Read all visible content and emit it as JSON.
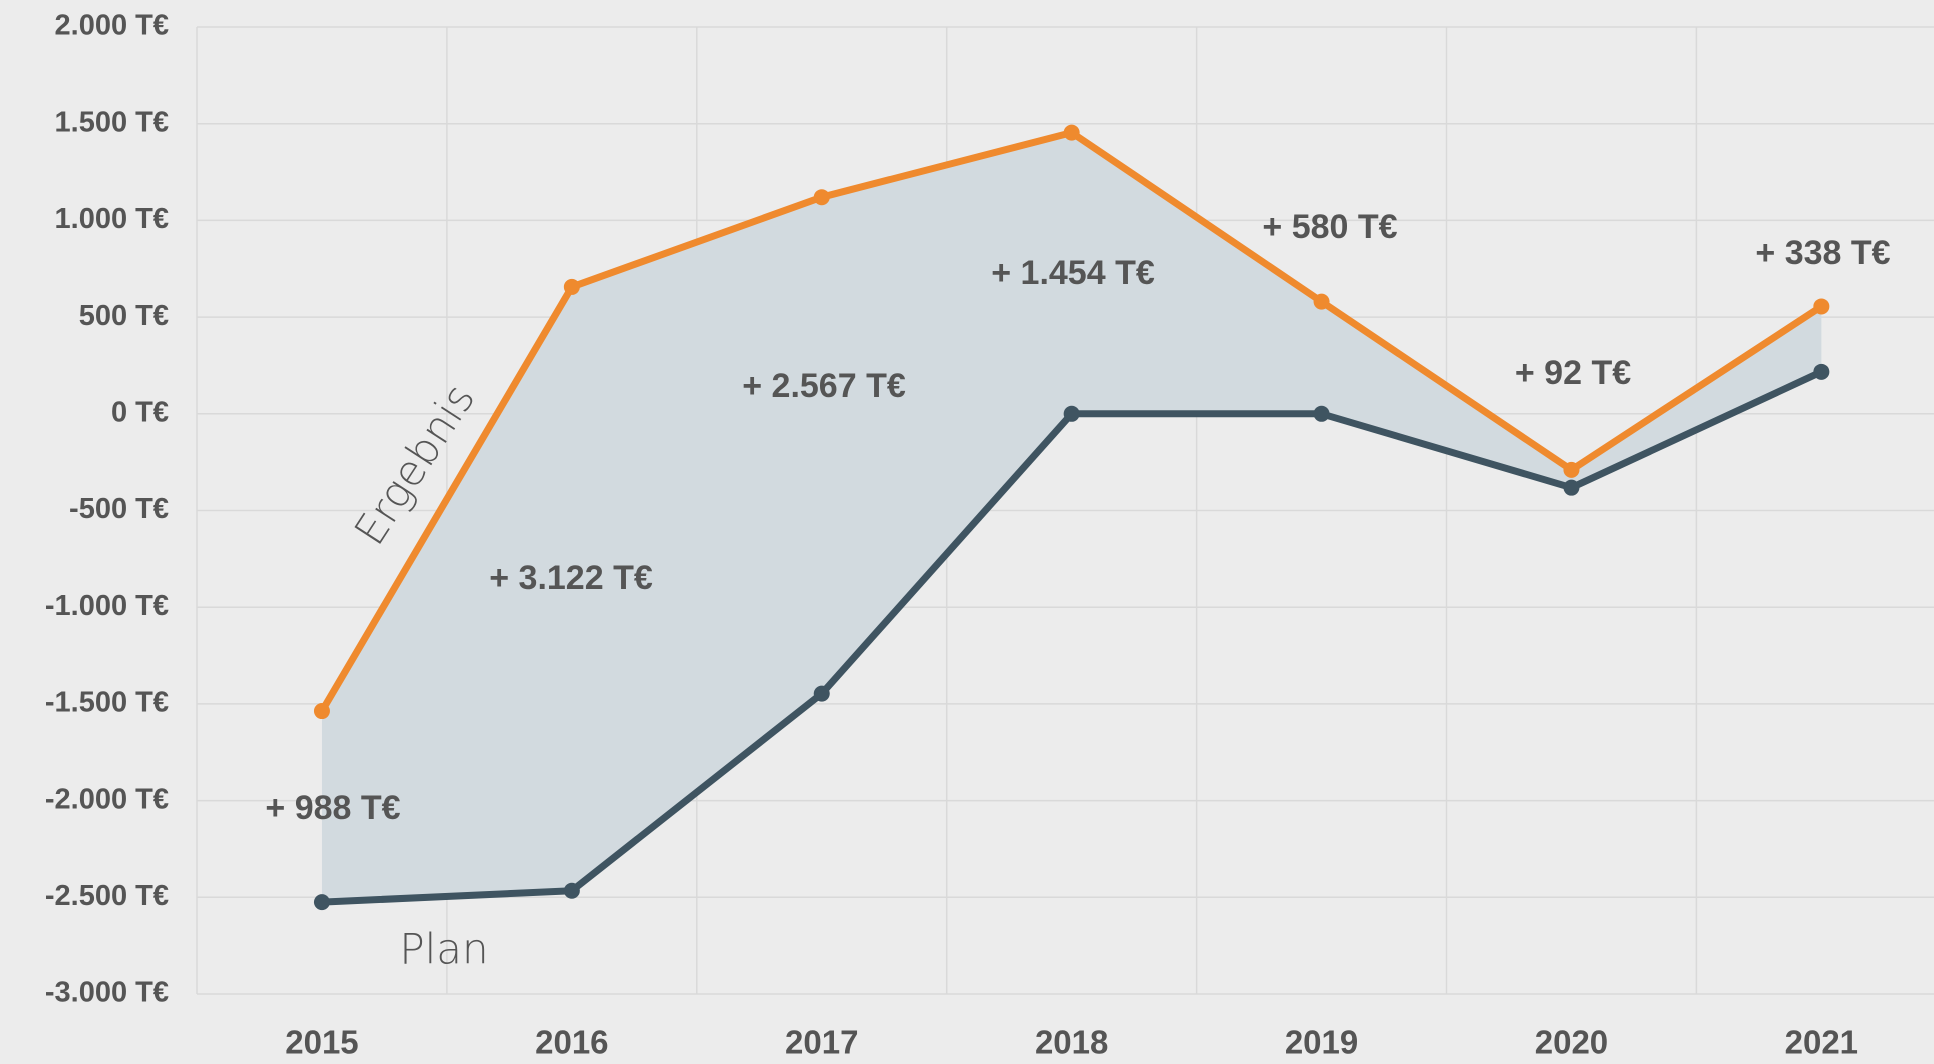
{
  "chart_data": {
    "type": "line",
    "categories": [
      "2015",
      "2016",
      "2017",
      "2018",
      "2019",
      "2020",
      "2021"
    ],
    "series": [
      {
        "name": "Ergebnis",
        "color": "#ef8a2e",
        "values": [
          -1537,
          656,
          1120,
          1454,
          580,
          -290,
          555
        ]
      },
      {
        "name": "Plan",
        "color": "#3f5461",
        "values": [
          -2525,
          -2466,
          -1447,
          0,
          0,
          -382,
          217
        ]
      }
    ],
    "area_color": "#d2dadf",
    "annotations": [
      "+ 988 T€",
      "+ 3.122 T€",
      "+ 2.567 T€",
      "+ 1.454 T€",
      "+ 580 T€",
      "+ 92 T€",
      "+ 338 T€"
    ],
    "ylim": [
      -3000,
      2000
    ],
    "yticks": [
      {
        "value": -3000,
        "label": "-3.000 T€"
      },
      {
        "value": -2500,
        "label": "-2.500 T€"
      },
      {
        "value": -2000,
        "label": "-2.000 T€"
      },
      {
        "value": -1500,
        "label": "-1.500 T€"
      },
      {
        "value": -1000,
        "label": "-1.000 T€"
      },
      {
        "value": -500,
        "label": "-500 T€"
      },
      {
        "value": 0,
        "label": "0 T€"
      },
      {
        "value": 500,
        "label": "500 T€"
      },
      {
        "value": 1000,
        "label": "1.000 T€"
      },
      {
        "value": 1500,
        "label": "1.500 T€"
      },
      {
        "value": 2000,
        "label": "2.000 T€"
      }
    ],
    "grid": true
  }
}
